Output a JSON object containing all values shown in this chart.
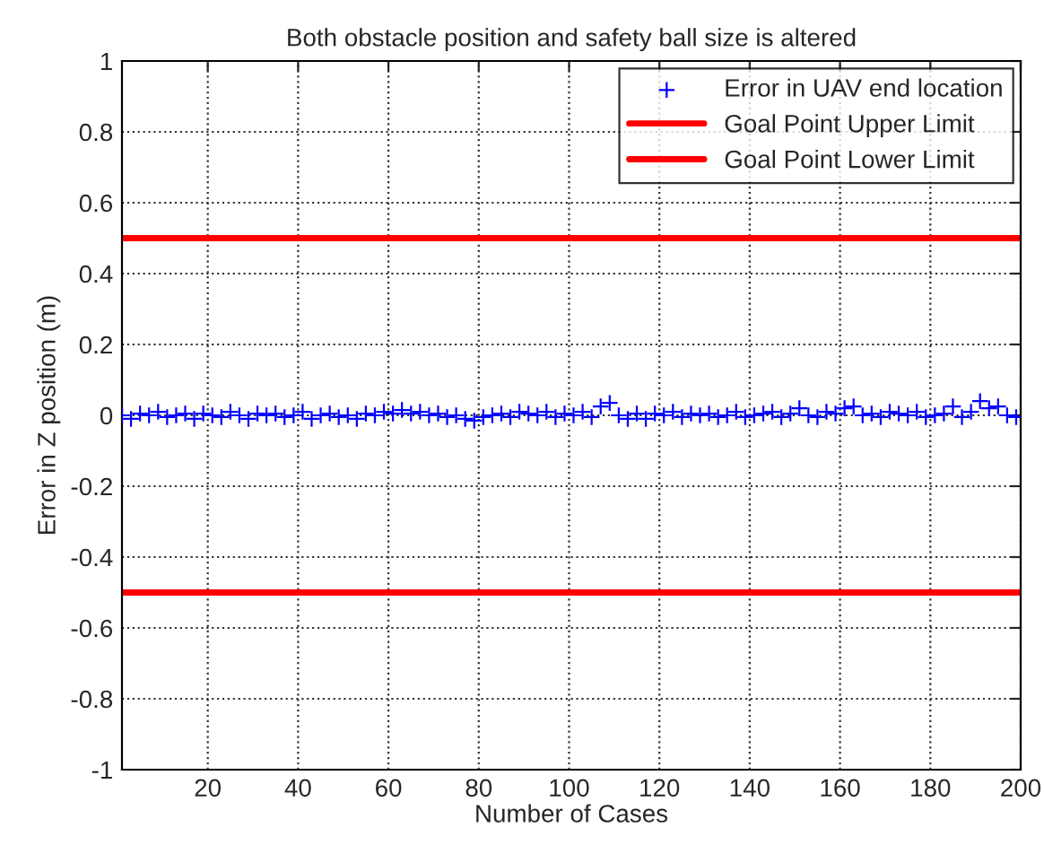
{
  "chart_data": {
    "type": "scatter",
    "title": "Both obstacle position and safety ball size is altered",
    "xlabel": "Number of Cases",
    "ylabel": "Error in Z position (m)",
    "xlim": [
      1,
      200
    ],
    "xticks": [
      20,
      40,
      60,
      80,
      100,
      120,
      140,
      160,
      180,
      200
    ],
    "ylim": [
      -1,
      1
    ],
    "yticks": [
      -1,
      -0.8,
      -0.6,
      -0.4,
      -0.2,
      0,
      0.2,
      0.4,
      0.6,
      0.8,
      1
    ],
    "grid": true,
    "legend": "top right",
    "series": [
      {
        "name": "Error in UAV end location",
        "marker": "cross",
        "color": "#0000ff",
        "x": [
          1,
          3,
          5,
          7,
          9,
          11,
          13,
          15,
          17,
          19,
          21,
          23,
          25,
          27,
          29,
          31,
          33,
          35,
          37,
          39,
          41,
          43,
          45,
          47,
          49,
          51,
          53,
          55,
          57,
          59,
          61,
          63,
          65,
          67,
          69,
          71,
          73,
          75,
          77,
          79,
          81,
          83,
          85,
          87,
          89,
          91,
          93,
          95,
          97,
          99,
          101,
          103,
          105,
          107,
          109,
          111,
          113,
          115,
          117,
          119,
          121,
          123,
          125,
          127,
          129,
          131,
          133,
          135,
          137,
          139,
          141,
          143,
          145,
          147,
          149,
          151,
          153,
          155,
          157,
          159,
          161,
          163,
          165,
          167,
          169,
          171,
          173,
          175,
          177,
          179,
          181,
          183,
          185,
          187,
          189,
          191,
          193,
          195,
          197,
          199
        ],
        "values": [
          0,
          -0.01,
          0.005,
          0,
          0.01,
          -0.005,
          0,
          0.005,
          -0.01,
          0.005,
          0,
          -0.005,
          0.01,
          0,
          -0.01,
          0.005,
          0,
          0.005,
          -0.005,
          0,
          0.01,
          -0.01,
          0,
          0.005,
          -0.005,
          0,
          -0.01,
          0.005,
          0,
          0.01,
          0.005,
          0.015,
          0.005,
          0.01,
          0,
          0.005,
          -0.005,
          0,
          -0.01,
          -0.015,
          -0.005,
          0,
          0.005,
          -0.005,
          0.01,
          0.005,
          0,
          0.01,
          -0.005,
          0.005,
          0,
          0.01,
          -0.005,
          0.025,
          0.035,
          0,
          -0.01,
          0.005,
          -0.01,
          0.005,
          0,
          0.01,
          -0.005,
          0.005,
          0,
          0.005,
          -0.005,
          0,
          0.01,
          -0.005,
          0,
          0.005,
          0.01,
          -0.005,
          0.005,
          0.02,
          0,
          -0.005,
          0.01,
          0.005,
          0.02,
          0.025,
          0,
          0.005,
          -0.005,
          0.01,
          0.005,
          0,
          0.01,
          -0.005,
          0,
          0.005,
          0.025,
          -0.005,
          0.01,
          0.04,
          0.02,
          0.025,
          0,
          -0.005
        ]
      },
      {
        "name": "Goal Point Upper Limit",
        "type": "line",
        "color": "#ff0000",
        "x": [
          1,
          200
        ],
        "values": [
          0.5,
          0.5
        ]
      },
      {
        "name": "Goal Point Lower Limit",
        "type": "line",
        "color": "#ff0000",
        "x": [
          1,
          200
        ],
        "values": [
          -0.5,
          -0.5
        ]
      }
    ]
  }
}
